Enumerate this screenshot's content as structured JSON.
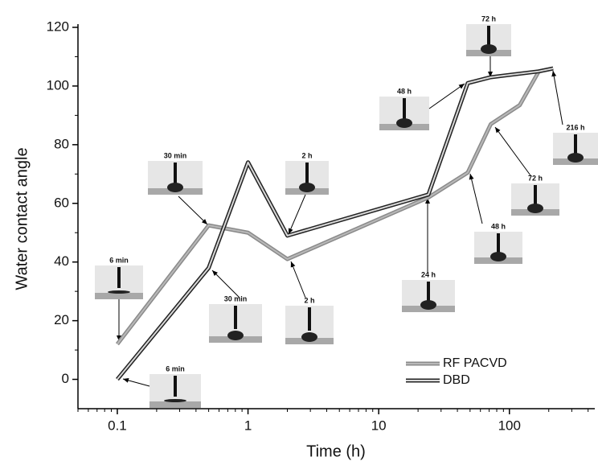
{
  "chart_data": {
    "type": "line",
    "x_label": "Time (h)",
    "y_label": "Water contact angle",
    "log_x": true,
    "xlim": [
      0.05,
      450
    ],
    "xticks": [
      0.1,
      1,
      10,
      100
    ],
    "ylim": [
      -10,
      120
    ],
    "yticks": [
      0,
      20,
      40,
      60,
      80,
      100,
      120
    ],
    "legend_position": "lower right",
    "series": [
      {
        "name": "RF PACVD",
        "color": "#b8b8b8",
        "outline": "#8a8a8a",
        "x": [
          0.1,
          0.5,
          1,
          2,
          24,
          48,
          72,
          120,
          168,
          216
        ],
        "values": [
          12,
          52.5,
          50,
          41,
          62,
          70.5,
          87,
          93.5,
          105,
          106
        ]
      },
      {
        "name": "DBD",
        "color": "#d8d8d8",
        "outline": "#222222",
        "x": [
          0.1,
          0.5,
          1,
          2,
          24,
          48,
          72,
          168,
          216
        ],
        "values": [
          0,
          38,
          74,
          49,
          63,
          101,
          103,
          105,
          106
        ]
      }
    ],
    "annotations": [
      "6 min",
      "6 min",
      "30 min",
      "30 min",
      "2 h",
      "2 h",
      "24 h",
      "48 h",
      "48 h",
      "72 h",
      "72 h",
      "216 h"
    ]
  }
}
